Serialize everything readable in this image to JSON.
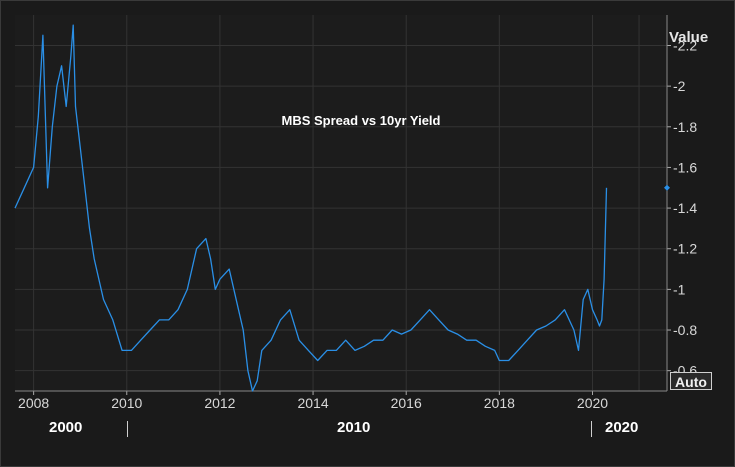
{
  "unit_label": "Value",
  "auto_label": "Auto",
  "decades": [
    "2000",
    "2010",
    "2020"
  ],
  "chart_data": {
    "type": "line",
    "title": "MBS Spread vs 10yr Yield",
    "xlabel": "",
    "ylabel": "",
    "y_axis": "inverted",
    "ylim": [
      -0.5,
      -2.35
    ],
    "xlim": [
      2007.6,
      2021.6
    ],
    "x_ticks": [
      2008,
      2010,
      2012,
      2014,
      2016,
      2018,
      2020
    ],
    "x_tick_labels": [
      "2008",
      "2010",
      "2012",
      "2014",
      "2016",
      "2018",
      "2020"
    ],
    "y_ticks": [
      -2.2,
      -2,
      -1.8,
      -1.6,
      -1.4,
      -1.2,
      -1,
      -0.8,
      -0.6
    ],
    "y_tick_labels": [
      "-2.2",
      "-2",
      "-1.8",
      "-1.6",
      "-1.4",
      "-1.2",
      "-1",
      "-0.8",
      "-0.6"
    ],
    "last_value": -1.5,
    "grid": true,
    "series_color": "#2a8fe6",
    "series": [
      {
        "x": [
          2007.6,
          2007.8,
          2008.0,
          2008.1,
          2008.2,
          2008.3,
          2008.4,
          2008.5,
          2008.6,
          2008.7,
          2008.8,
          2008.85,
          2008.9,
          2009.0,
          2009.1,
          2009.2,
          2009.3,
          2009.5,
          2009.7,
          2009.9,
          2010.1,
          2010.3,
          2010.5,
          2010.7,
          2010.9,
          2011.1,
          2011.3,
          2011.5,
          2011.7,
          2011.8,
          2011.9,
          2012.0,
          2012.2,
          2012.4,
          2012.5,
          2012.6,
          2012.7,
          2012.8,
          2012.9,
          2013.1,
          2013.3,
          2013.5,
          2013.7,
          2013.9,
          2014.1,
          2014.3,
          2014.5,
          2014.7,
          2014.9,
          2015.1,
          2015.3,
          2015.5,
          2015.7,
          2015.9,
          2016.1,
          2016.3,
          2016.5,
          2016.7,
          2016.9,
          2017.1,
          2017.3,
          2017.5,
          2017.7,
          2017.9,
          2018.0,
          2018.2,
          2018.4,
          2018.6,
          2018.8,
          2019.0,
          2019.2,
          2019.4,
          2019.6,
          2019.7,
          2019.8,
          2019.9,
          2020.0,
          2020.1,
          2020.15,
          2020.2,
          2020.25,
          2020.3
        ],
        "y": [
          -1.4,
          -1.5,
          -1.6,
          -1.85,
          -2.25,
          -1.5,
          -1.8,
          -2.0,
          -2.1,
          -1.9,
          -2.15,
          -2.3,
          -1.9,
          -1.7,
          -1.5,
          -1.3,
          -1.15,
          -0.95,
          -0.85,
          -0.7,
          -0.7,
          -0.75,
          -0.8,
          -0.85,
          -0.85,
          -0.9,
          -1.0,
          -1.2,
          -1.25,
          -1.15,
          -1.0,
          -1.05,
          -1.1,
          -0.9,
          -0.8,
          -0.6,
          -0.5,
          -0.55,
          -0.7,
          -0.75,
          -0.85,
          -0.9,
          -0.75,
          -0.7,
          -0.65,
          -0.7,
          -0.7,
          -0.75,
          -0.7,
          -0.72,
          -0.75,
          -0.75,
          -0.8,
          -0.78,
          -0.8,
          -0.85,
          -0.9,
          -0.85,
          -0.8,
          -0.78,
          -0.75,
          -0.75,
          -0.72,
          -0.7,
          -0.65,
          -0.65,
          -0.7,
          -0.75,
          -0.8,
          -0.82,
          -0.85,
          -0.9,
          -0.8,
          -0.7,
          -0.95,
          -1.0,
          -0.9,
          -0.85,
          -0.82,
          -0.85,
          -1.05,
          -1.5
        ]
      }
    ]
  }
}
